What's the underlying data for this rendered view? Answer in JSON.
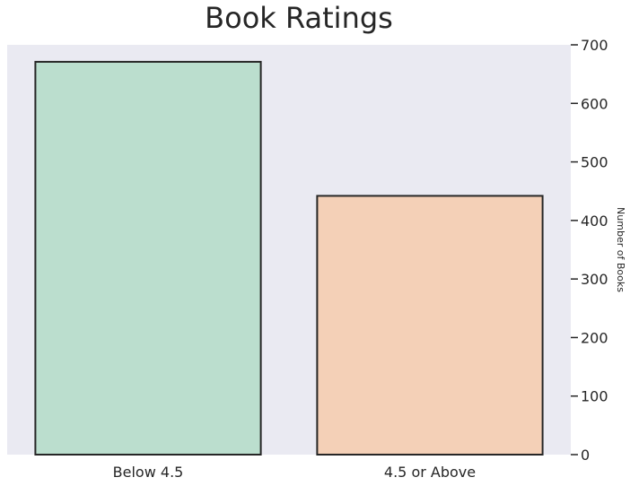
{
  "chart_data": {
    "type": "bar",
    "title": "Book Ratings",
    "categories": [
      "Below 4.5",
      "4.5 or Above"
    ],
    "values": [
      671,
      442
    ],
    "xlabel": "",
    "ylabel": "Number of Books",
    "ylim": [
      0,
      700
    ],
    "yticks": [
      0,
      100,
      200,
      300,
      400,
      500,
      600,
      700
    ],
    "y_axis_side": "right",
    "grid": false,
    "colors": [
      "#bbdece",
      "#f4d0b7"
    ],
    "edge_color": "#262626",
    "background": "#eaeaf2"
  }
}
